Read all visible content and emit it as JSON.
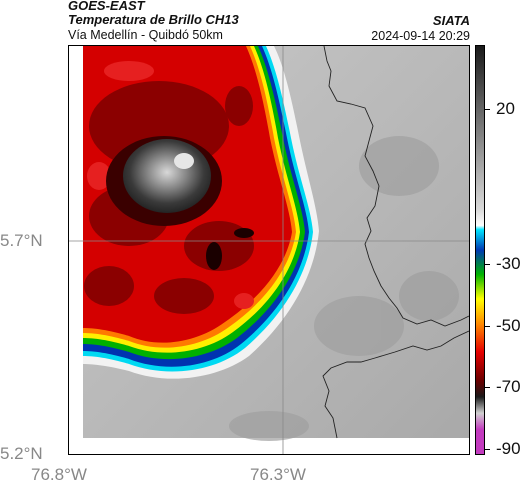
{
  "header": {
    "satellite": "GOES-EAST",
    "product": "Temperatura de Brillo CH13",
    "route": "Vía Medellín - Quibdó 50km",
    "organization": "SIATA",
    "timestamp": "2024-09-14 20:29"
  },
  "map": {
    "lat_labels": [
      "5.7°N",
      "5.2°N"
    ],
    "lon_labels": [
      "76.8°W",
      "76.3°W"
    ],
    "gridline_color": "#888888"
  },
  "colorbar": {
    "labels": [
      "20",
      "-30",
      "-50",
      "-70",
      "-90"
    ],
    "value_range": [
      -90,
      40
    ],
    "colors": {
      "warm_gray_top": "#1a1a1a",
      "gray_mid": "#d9d9d9",
      "cyan": "#00e5ff",
      "blue": "#0039b3",
      "green": "#00b400",
      "yellow": "#ffff00",
      "orange": "#ff8c00",
      "red": "#e60000",
      "dark_red": "#6b0000",
      "magenta": "#c33bbf"
    }
  }
}
